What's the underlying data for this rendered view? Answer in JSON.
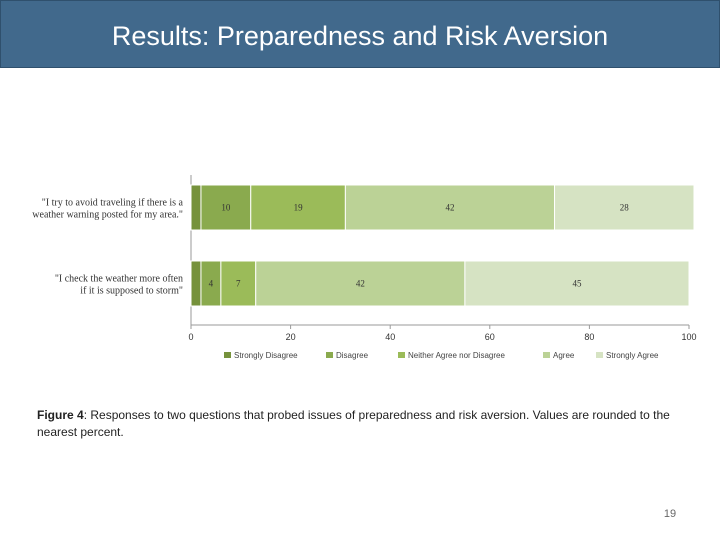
{
  "slide": {
    "title": "Results: Preparedness and Risk Aversion",
    "caption_label": "Figure 4",
    "caption_text": ": Responses to two questions that probed issues of preparedness and risk aversion.  Values are rounded to the nearest percent.",
    "page_number": "19"
  },
  "chart_data": {
    "type": "bar",
    "orientation": "horizontal",
    "stacked": true,
    "categories": [
      [
        "\"I try to avoid traveling if there is a",
        "weather warning posted for my area.\""
      ],
      [
        "\"I check the weather more often",
        "if it is supposed to storm\""
      ]
    ],
    "series": [
      {
        "name": "Strongly Disagree",
        "values": [
          2,
          2
        ],
        "color": "#76923c"
      },
      {
        "name": "Disagree",
        "values": [
          10,
          4
        ],
        "color": "#8aaa4e"
      },
      {
        "name": "Neither Agree nor Disagree",
        "values": [
          19,
          7
        ],
        "color": "#9bbb59"
      },
      {
        "name": "Agree",
        "values": [
          42,
          42
        ],
        "color": "#bbd296"
      },
      {
        "name": "Strongly Agree",
        "values": [
          28,
          45
        ],
        "color": "#d6e3c3"
      }
    ],
    "data_labels": [
      [
        "",
        "10",
        "19",
        "42",
        "28"
      ],
      [
        "",
        "4",
        "7",
        "42",
        "45"
      ]
    ],
    "xlim": [
      0,
      100
    ],
    "xticks": [
      0,
      20,
      40,
      60,
      80,
      100
    ],
    "legend_position": "bottom",
    "grid": false
  }
}
